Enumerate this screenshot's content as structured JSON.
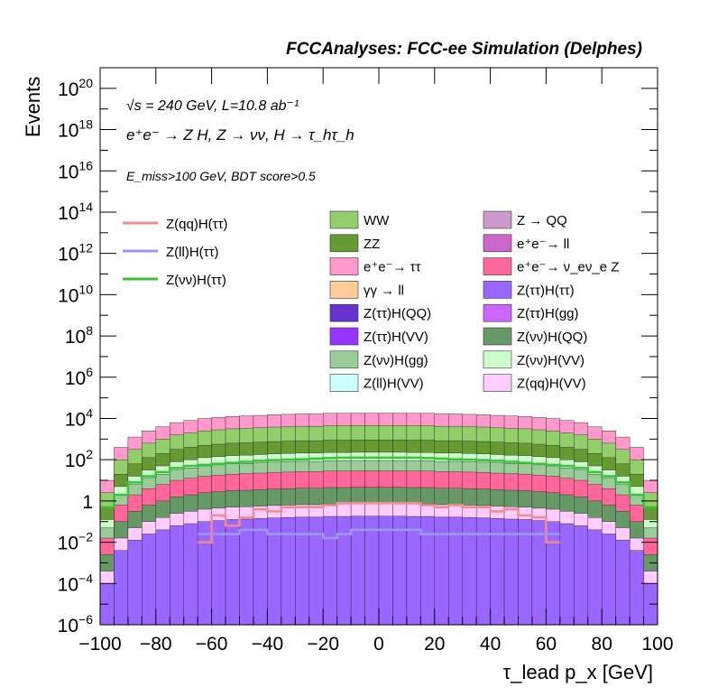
{
  "chart_data": {
    "type": "area",
    "title": "FCCAnalyses: FCC-ee Simulation (Delphes)",
    "xlabel": "τ_lead p_x [GeV]",
    "ylabel": "Events",
    "xlim": [
      -100,
      100
    ],
    "ylim": [
      1e-06,
      1e+21
    ],
    "yscale": "log",
    "x_ticks": [
      -100,
      -80,
      -60,
      -40,
      -20,
      0,
      20,
      40,
      60,
      80,
      100
    ],
    "y_tick_exponents": [
      -6,
      -4,
      -2,
      0,
      2,
      4,
      6,
      8,
      10,
      12,
      14,
      16,
      18,
      20
    ],
    "annotations": [
      "√s = 240 GeV, L=10.8 ab⁻¹",
      "e⁺e⁻ → Z H, Z → νν, H → τ_hτ_h",
      "E_miss>100 GeV, BDT score>0.5"
    ],
    "signal_legend": [
      {
        "name": "Z(qq)H(ττ)",
        "color": "#f08c8c"
      },
      {
        "name": "Z(ll)H(ττ)",
        "color": "#9a9af0"
      },
      {
        "name": "Z(νν)H(ττ)",
        "color": "#3cc13c"
      }
    ],
    "background_legend": [
      {
        "name": "WW",
        "color": "#92cf6a"
      },
      {
        "name": "Z → QQ",
        "color": "#cc99cc"
      },
      {
        "name": "ZZ",
        "color": "#669a33"
      },
      {
        "name": "e⁺e⁻→ ll",
        "color": "#cc66cc"
      },
      {
        "name": "e⁺e⁻→ ττ",
        "color": "#ff99cc"
      },
      {
        "name": "e⁺e⁻→ ν_eν_e Z",
        "color": "#ff6699"
      },
      {
        "name": "γγ → ll",
        "color": "#ffcc99"
      },
      {
        "name": "Z(ττ)H(ττ)",
        "color": "#9966ff"
      },
      {
        "name": "Z(ττ)H(QQ)",
        "color": "#6633cc"
      },
      {
        "name": "Z(ττ)H(gg)",
        "color": "#cc66ff"
      },
      {
        "name": "Z(ττ)H(VV)",
        "color": "#9933ff"
      },
      {
        "name": "Z(νν)H(QQ)",
        "color": "#669966"
      },
      {
        "name": "Z(νν)H(gg)",
        "color": "#99cc99"
      },
      {
        "name": "Z(νν)H(VV)",
        "color": "#ccffcc"
      },
      {
        "name": "Z(ll)H(VV)",
        "color": "#ccffff"
      },
      {
        "name": "Z(qq)H(VV)",
        "color": "#ffccff"
      }
    ],
    "bin_centers": [
      -97.5,
      -92.5,
      -87.5,
      -82.5,
      -77.5,
      -72.5,
      -67.5,
      -62.5,
      -57.5,
      -52.5,
      -47.5,
      -42.5,
      -37.5,
      -32.5,
      -27.5,
      -22.5,
      -17.5,
      -12.5,
      -7.5,
      -2.5,
      2.5,
      7.5,
      12.5,
      17.5,
      22.5,
      27.5,
      32.5,
      37.5,
      42.5,
      47.5,
      52.5,
      57.5,
      62.5,
      67.5,
      72.5,
      77.5,
      82.5,
      87.5,
      92.5,
      97.5
    ],
    "stack_totals_log10": [
      1.0,
      2.6,
      3.1,
      3.4,
      3.6,
      3.8,
      3.9,
      4.0,
      4.05,
      4.1,
      4.12,
      4.15,
      4.18,
      4.2,
      4.22,
      4.22,
      4.25,
      4.25,
      4.26,
      4.26,
      4.26,
      4.26,
      4.25,
      4.25,
      4.22,
      4.22,
      4.2,
      4.18,
      4.15,
      4.12,
      4.1,
      4.05,
      4.0,
      3.9,
      3.8,
      3.6,
      3.4,
      3.1,
      2.6,
      1.0
    ],
    "series": [
      {
        "name": "Z(νν)H(ττ)",
        "color": "#3cc13c",
        "values_log10": [
          -0.3,
          0.3,
          0.9,
          1.2,
          1.4,
          1.6,
          1.7,
          1.75,
          1.8,
          1.85,
          1.9,
          1.95,
          1.98,
          2.0,
          2.02,
          2.05,
          2.08,
          2.1,
          2.1,
          2.1,
          2.1,
          2.1,
          2.1,
          2.08,
          2.05,
          2.02,
          2.0,
          1.98,
          1.95,
          1.9,
          1.85,
          1.8,
          1.75,
          1.7,
          1.6,
          1.4,
          1.2,
          0.9,
          0.3,
          -0.3
        ]
      },
      {
        "name": "Z(qq)H(ττ)",
        "color": "#f08c8c",
        "values_log10": [
          null,
          null,
          null,
          null,
          null,
          null,
          null,
          -2.0,
          -0.7,
          -1.2,
          -0.8,
          -0.4,
          -0.5,
          -0.3,
          -0.3,
          -0.3,
          -0.2,
          -0.1,
          -0.1,
          -0.1,
          -0.1,
          -0.1,
          -0.1,
          -0.2,
          -0.3,
          -0.2,
          -0.3,
          -0.3,
          -0.5,
          -0.4,
          -0.7,
          -0.8,
          -2.0,
          null,
          null,
          null,
          null,
          null,
          null,
          null
        ]
      },
      {
        "name": "Z(ll)H(ττ)",
        "color": "#9a9af0",
        "values_log10": [
          null,
          null,
          null,
          null,
          null,
          null,
          null,
          -1.6,
          -1.6,
          -1.6,
          -1.4,
          -1.4,
          -1.6,
          -1.6,
          -1.6,
          -1.6,
          -1.8,
          -1.6,
          -1.4,
          -1.4,
          -1.4,
          -1.4,
          -1.4,
          -1.6,
          -1.6,
          -1.6,
          -1.6,
          -1.6,
          -1.6,
          -1.6,
          -1.6,
          -1.6,
          -1.6,
          null,
          null,
          null,
          null,
          null,
          null,
          null
        ]
      }
    ]
  }
}
